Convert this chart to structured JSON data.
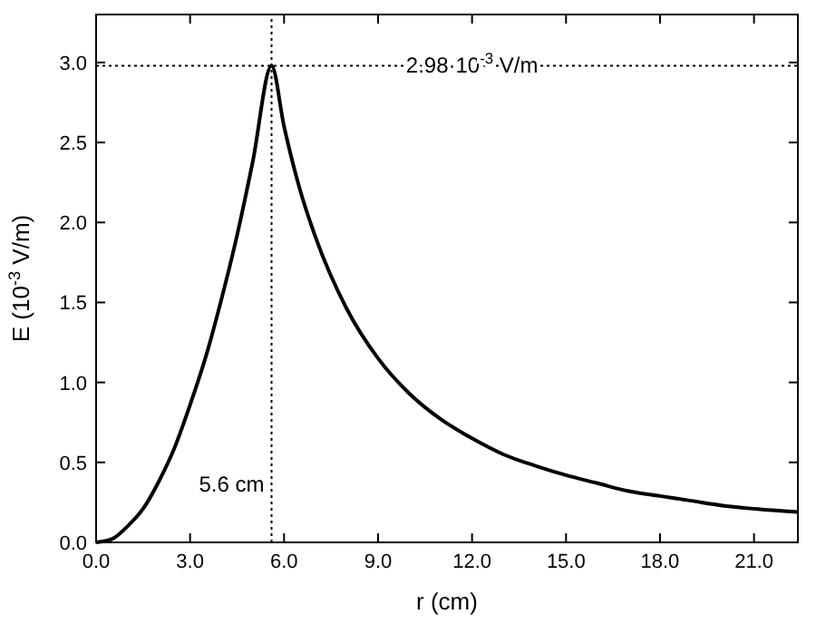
{
  "chart_data": {
    "type": "line",
    "xlabel": "r (cm)",
    "ylabel": "E (10$^{-3}$ V/m)",
    "xlim": [
      0,
      22.4
    ],
    "ylim": [
      0,
      3.3
    ],
    "xticks": [
      {
        "value": 0,
        "label": "0.0"
      },
      {
        "value": 3,
        "label": "3.0"
      },
      {
        "value": 6,
        "label": "6.0"
      },
      {
        "value": 9,
        "label": "9.0"
      },
      {
        "value": 12,
        "label": "12.0"
      },
      {
        "value": 15,
        "label": "15.0"
      },
      {
        "value": 18,
        "label": "18.0"
      },
      {
        "value": 21,
        "label": "21.0"
      }
    ],
    "yticks": [
      {
        "value": 0,
        "label": "0.0"
      },
      {
        "value": 0.5,
        "label": "0.5"
      },
      {
        "value": 1,
        "label": "1.0"
      },
      {
        "value": 1.5,
        "label": "1.5"
      },
      {
        "value": 2,
        "label": "2.0"
      },
      {
        "value": 2.5,
        "label": "2.5"
      },
      {
        "value": 3,
        "label": "3.0"
      }
    ],
    "x": [
      0,
      0.5,
      1,
      1.5,
      2,
      2.5,
      3,
      3.5,
      4,
      4.5,
      5,
      5.6,
      6,
      6.5,
      7,
      8,
      9,
      10,
      11,
      12,
      13,
      14,
      15,
      16,
      17,
      18,
      19,
      20,
      21,
      22.4
    ],
    "series": [
      {
        "color": "#000000",
        "values": [
          0,
          0.02,
          0.1,
          0.21,
          0.38,
          0.59,
          0.86,
          1.16,
          1.52,
          1.92,
          2.38,
          2.98,
          2.6,
          2.21,
          1.91,
          1.46,
          1.15,
          0.93,
          0.77,
          0.65,
          0.55,
          0.48,
          0.42,
          0.37,
          0.32,
          0.29,
          0.26,
          0.23,
          0.21,
          0.19
        ]
      }
    ],
    "ref_lines": [
      {
        "axis": "y",
        "value": 2.98,
        "label": "2.98·10$^{-3}$ V/m",
        "color": "#000000",
        "line_style": "dotted"
      },
      {
        "axis": "x",
        "value": 5.6,
        "label": "5.6 cm",
        "color": "#000000",
        "line_style": "dotted"
      }
    ],
    "marker": "none",
    "line_style": "solid",
    "grid": false
  }
}
